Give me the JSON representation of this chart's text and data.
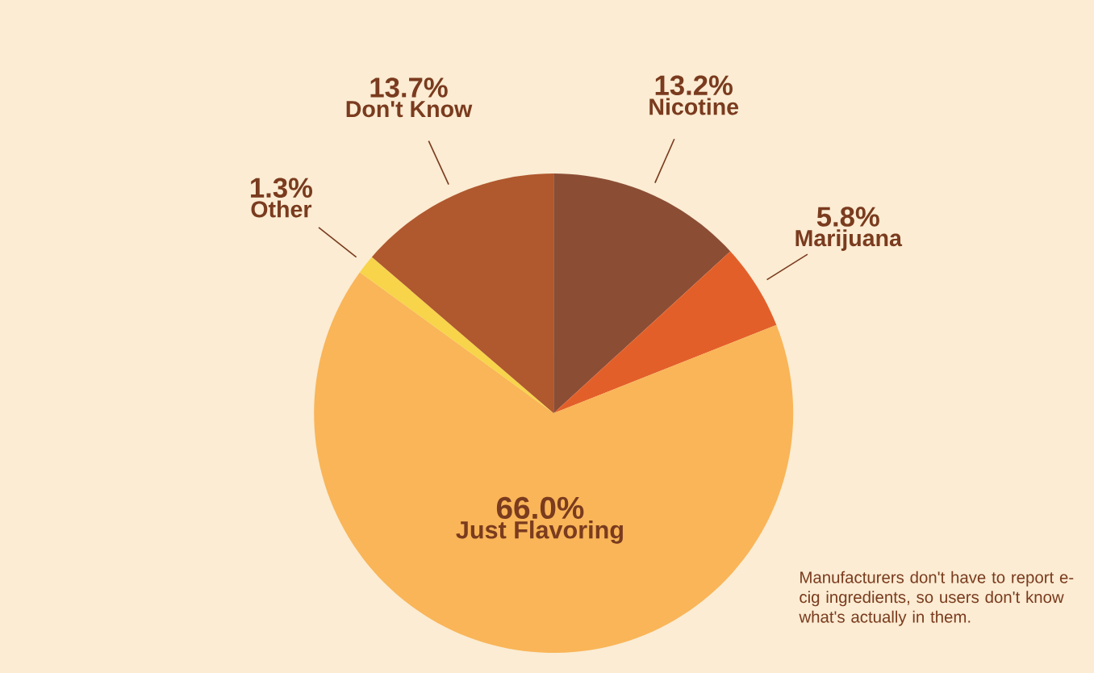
{
  "chart_data": {
    "type": "pie",
    "categories": [
      "Nicotine",
      "Marijuana",
      "Just Flavoring",
      "Other",
      "Don't Know"
    ],
    "values": [
      13.2,
      5.8,
      66.0,
      1.3,
      13.7
    ],
    "value_labels": [
      "13.2%",
      "5.8%",
      "66.0%",
      "1.3%",
      "13.7%"
    ],
    "colors": [
      "#8b4e35",
      "#e35f2a",
      "#f9b558",
      "#f7d44a",
      "#b0582e"
    ],
    "annotations": [
      "Manufacturers don't have to report e-cig ingredients, so users don't know what's actually in them."
    ]
  }
}
